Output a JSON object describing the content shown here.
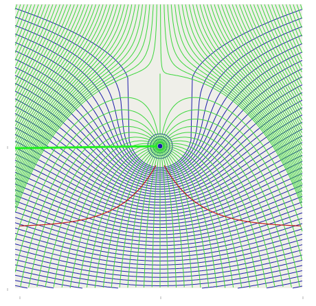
{
  "diagram": {
    "type": "field-line-plot",
    "description_visible_text": "",
    "colors": {
      "background": "#efefe9",
      "field_lines": "#3bd63b",
      "equipotential_lines": "#1a1aa8",
      "separatrix": "#c01818",
      "cut_line": "#22ee22",
      "source_point": "#1a1aa8",
      "edge_ticks": "#d8d8d8"
    },
    "source": {
      "type": "point-source-in-uniform-flow",
      "strength": 1.0,
      "uniform_flow": 1.0
    },
    "field_line_count": 80,
    "equipotential_line_count": 44,
    "grid": false,
    "legend": "none"
  }
}
